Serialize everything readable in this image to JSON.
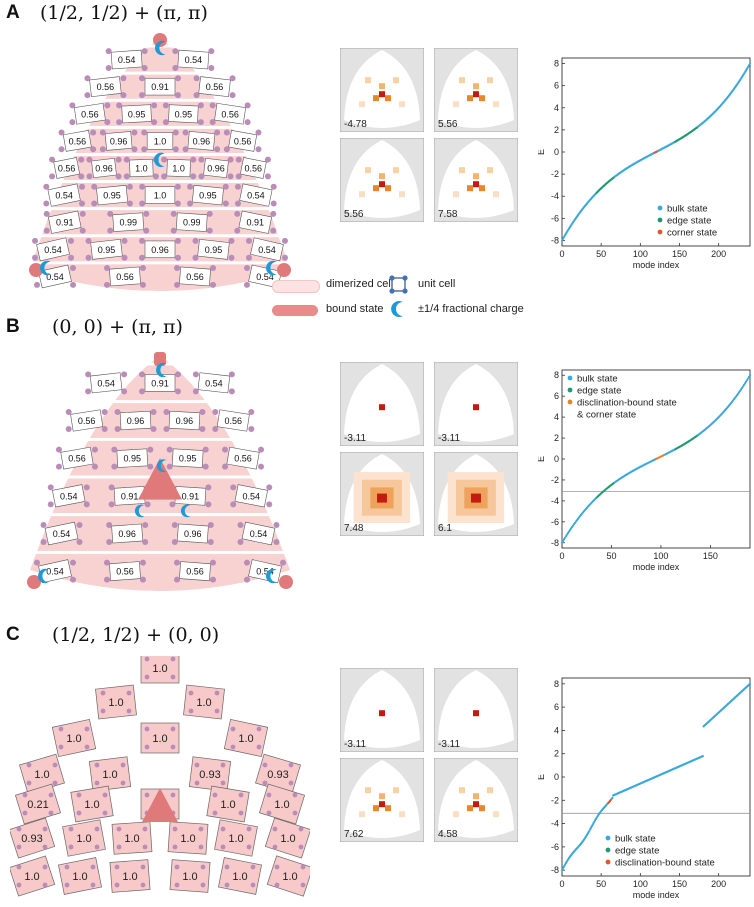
{
  "panels": [
    {
      "label": "A",
      "title": "(1/2, 1/2) + (π, π)",
      "lattice_mode": "A",
      "rows": [
        {
          "vals": [
            "0.54",
            "0.54"
          ]
        },
        {
          "vals": [
            "0.56",
            "0.91",
            "0.56"
          ]
        },
        {
          "vals": [
            "0.56",
            "0.95",
            "0.95",
            "0.56"
          ]
        },
        {
          "vals": [
            "0.56",
            "0.96",
            "1.0",
            "0.96",
            "0.56"
          ]
        },
        {
          "vals": [
            "0.56",
            "0.96",
            "1.0",
            "1.0",
            "0.96",
            "0.56"
          ]
        },
        {
          "vals": [
            "0.54",
            "0.95",
            "1.0",
            "0.95",
            "0.54"
          ]
        },
        {
          "vals": [
            "0.91",
            "0.99",
            "0.99",
            "0.91"
          ]
        },
        {
          "vals": [
            "0.54",
            "0.95",
            "0.96",
            "0.95",
            "0.54"
          ]
        },
        {
          "vals": [
            "0.54",
            "0.56",
            "0.56",
            "0.54"
          ]
        }
      ],
      "mode_maps": [
        {
          "energy": "-4.78",
          "style": "cornerA"
        },
        {
          "energy": "5.56",
          "style": "cornerA"
        },
        {
          "energy": "5.56",
          "style": "cornerA"
        },
        {
          "energy": "7.58",
          "style": "cornerA2"
        }
      ],
      "spectrum": {
        "type": "scatter",
        "n_modes": 240,
        "xlabel": "mode index",
        "ylabel": "E",
        "xticks": [
          0,
          50,
          100,
          150,
          200
        ],
        "yticks": [
          -8,
          -6,
          -4,
          -2,
          0,
          2,
          4,
          6,
          8
        ],
        "xlim": [
          0,
          240
        ],
        "ylim": [
          -8.5,
          8.5
        ],
        "gap_line": null,
        "legend": [
          {
            "label": "bulk state",
            "color": "#3aa8dc"
          },
          {
            "label": "edge state",
            "color": "#1f9a6e"
          },
          {
            "label": "corner state",
            "color": "#e2542d"
          }
        ],
        "legend_pos": "bottom-right"
      }
    },
    {
      "label": "B",
      "title": "(0, 0) + (π, π)",
      "lattice_mode": "B",
      "rows": [
        {
          "vals": [
            "0.54",
            "0.91",
            "0.54"
          ]
        },
        {
          "vals": [
            "0.56",
            "0.96",
            "0.96",
            "0.56"
          ]
        },
        {
          "vals": [
            "0.56",
            "0.95",
            "0.95",
            "0.56"
          ]
        },
        {
          "vals": [
            "0.54",
            "0.91",
            "0.91",
            "0.54"
          ]
        },
        {
          "vals": [
            "0.54",
            "0.96",
            "0.96",
            "0.54"
          ]
        },
        {
          "vals": [
            "0.54",
            "0.56",
            "0.56",
            "0.54"
          ]
        }
      ],
      "mode_maps": [
        {
          "energy": "-3.11",
          "style": "dot"
        },
        {
          "energy": "-3.11",
          "style": "dot"
        },
        {
          "energy": "7.48",
          "style": "bloom"
        },
        {
          "energy": "6.1",
          "style": "bloom2"
        }
      ],
      "spectrum": {
        "type": "scatter",
        "n_modes": 190,
        "xlabel": "mode index",
        "ylabel": "E",
        "xticks": [
          0,
          50,
          100,
          150
        ],
        "yticks": [
          -8,
          -6,
          -4,
          -2,
          0,
          2,
          4,
          6,
          8
        ],
        "xlim": [
          0,
          190
        ],
        "ylim": [
          -8.5,
          8.5
        ],
        "gap_line": -3.11,
        "legend": [
          {
            "label": "bulk state",
            "color": "#3aa8dc"
          },
          {
            "label": "edge state",
            "color": "#1f9a6e"
          },
          {
            "label": "disclination-bound state",
            "color": "#e0852d"
          },
          {
            "label": "& corner state",
            "color": null
          }
        ],
        "legend_pos": "top-left"
      }
    },
    {
      "label": "C",
      "title": "(1/2, 1/2) + (0, 0)",
      "lattice_mode": "C",
      "cells": [
        "1.0",
        "1.0",
        "1.0",
        "1.0",
        "1.0",
        "1.0",
        "1.0",
        "1.0",
        "0.93",
        "0.93",
        "0.21",
        "1.0",
        "1.0",
        "1.0",
        "1.0",
        "0.93",
        "1.0",
        "1.0",
        "1.0",
        "1.0",
        "1.0",
        "1.0",
        "1.0",
        "1.0",
        "1.0",
        "1.0"
      ],
      "mode_maps": [
        {
          "energy": "-3.11",
          "style": "dot"
        },
        {
          "energy": "-3.11",
          "style": "dot"
        },
        {
          "energy": "7.62",
          "style": "cornerC"
        },
        {
          "energy": "4.58",
          "style": "cornerC"
        }
      ],
      "spectrum": {
        "type": "scatter",
        "n_modes": 240,
        "xlabel": "mode index",
        "ylabel": "E",
        "xticks": [
          0,
          50,
          100,
          150,
          200
        ],
        "yticks": [
          -8,
          -6,
          -4,
          -2,
          0,
          2,
          4,
          6,
          8
        ],
        "xlim": [
          0,
          240
        ],
        "ylim": [
          -8.5,
          8.5
        ],
        "gap_line": -3.11,
        "legend": [
          {
            "label": "bulk state",
            "color": "#3aa8dc"
          },
          {
            "label": "edge state",
            "color": "#1f9a6e"
          },
          {
            "label": "disclination-bound state",
            "color": "#e2542d"
          }
        ],
        "legend_pos": "bottom-right"
      }
    }
  ],
  "legend": {
    "dimerized_cell": "dimerized cell",
    "unit_cell": "unit cell",
    "bound_state": "bound state",
    "fractional_charge": "±1/4 fractional charge"
  },
  "colors": {
    "cell_fill": "#f7c9c9",
    "cell_light": "#fbe3e3",
    "bound": "#e07a7a",
    "site": "#b98db8",
    "moon": "#1e9ad6",
    "map_bg": "#e2e2e2"
  }
}
